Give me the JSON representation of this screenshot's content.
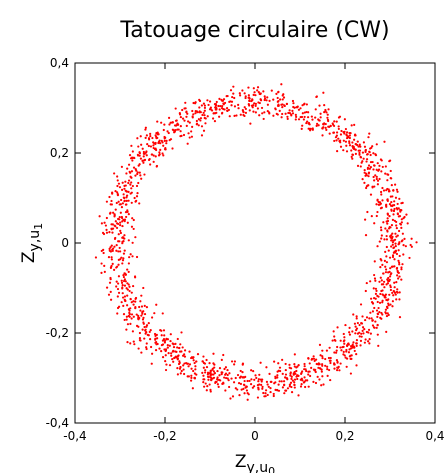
{
  "chart_data": {
    "type": "scatter",
    "title": "Tatouage circulaire (CW)",
    "xlabel": {
      "base": "Z",
      "sub": "y,u",
      "subsub": "0"
    },
    "ylabel": {
      "base": "Z",
      "sub": "y,u",
      "subsub": "1"
    },
    "xlim": [
      -0.4,
      0.4
    ],
    "ylim": [
      -0.4,
      0.4
    ],
    "xticks": [
      -0.4,
      -0.2,
      0,
      0.2,
      0.4
    ],
    "yticks": [
      -0.4,
      -0.2,
      0,
      0.2,
      0.4
    ],
    "xtick_labels": [
      "-0,4",
      "-0,2",
      "0",
      "0,2",
      "0,4"
    ],
    "ytick_labels": [
      "-0,4",
      "-0,2",
      "0",
      "0,2",
      "0,4"
    ],
    "grid": false,
    "series": [
      {
        "marker_color": "#ff0000",
        "shape": "ring",
        "center": [
          0.0,
          0.0
        ],
        "radius": 0.31,
        "radial_spread": 0.018,
        "point_count": 1800
      }
    ]
  }
}
